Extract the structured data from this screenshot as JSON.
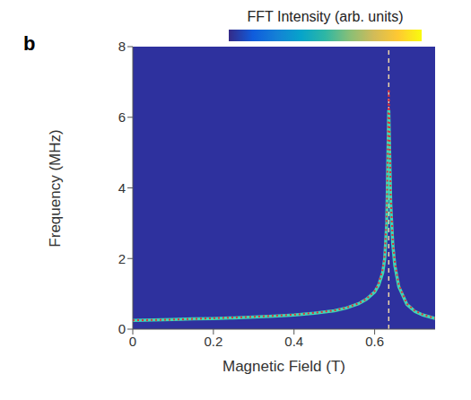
{
  "chart_data": {
    "type": "line",
    "panel_label": "b",
    "xlabel": "Magnetic Field (T)",
    "ylabel": "Frequency (MHz)",
    "xlim": [
      0,
      0.75
    ],
    "xticks": [
      0,
      0.2,
      0.4,
      0.6
    ],
    "ylim": [
      0,
      8
    ],
    "yticks": [
      0,
      2,
      4,
      6,
      8
    ],
    "grid": false,
    "series": [
      {
        "color": "#3fd6b4",
        "line_style": "solid",
        "marker": "none",
        "x": [
          0,
          0.05,
          0.1,
          0.15,
          0.2,
          0.25,
          0.3,
          0.35,
          0.4,
          0.45,
          0.5,
          0.53,
          0.56,
          0.58,
          0.6,
          0.61,
          0.62,
          0.625,
          0.63,
          0.635,
          0.64,
          0.645,
          0.65,
          0.66,
          0.68,
          0.7,
          0.72,
          0.75
        ],
        "values": [
          0.25,
          0.26,
          0.27,
          0.29,
          0.3,
          0.32,
          0.34,
          0.37,
          0.4,
          0.45,
          0.52,
          0.6,
          0.72,
          0.85,
          1.05,
          1.25,
          1.6,
          2.0,
          3.0,
          6.2,
          3.5,
          2.4,
          1.8,
          1.2,
          0.7,
          0.5,
          0.4,
          0.3
        ]
      },
      {
        "color": "#e0303a",
        "line_style": "dotted",
        "marker": "none",
        "x": [
          0,
          0.05,
          0.1,
          0.15,
          0.2,
          0.25,
          0.3,
          0.35,
          0.4,
          0.45,
          0.5,
          0.53,
          0.56,
          0.58,
          0.6,
          0.61,
          0.62,
          0.625,
          0.63,
          0.635,
          0.64,
          0.645,
          0.65,
          0.66,
          0.68,
          0.7,
          0.72,
          0.75
        ],
        "values": [
          0.25,
          0.26,
          0.27,
          0.29,
          0.31,
          0.33,
          0.35,
          0.38,
          0.41,
          0.46,
          0.53,
          0.61,
          0.73,
          0.86,
          1.08,
          1.3,
          1.7,
          2.1,
          3.2,
          6.8,
          3.7,
          2.5,
          1.9,
          1.25,
          0.72,
          0.52,
          0.41,
          0.31
        ]
      }
    ],
    "vline": {
      "x": 0.635,
      "color": "#f0d8a8",
      "line_style": "dashed"
    },
    "colorbar": {
      "label": "FFT Intensity (arb. units)",
      "colors": [
        "#352a87",
        "#0f5cdd",
        "#1481d6",
        "#06a4ca",
        "#2eb7a4",
        "#87bf77",
        "#d1bb59",
        "#fec832",
        "#f9fb0e"
      ]
    }
  }
}
